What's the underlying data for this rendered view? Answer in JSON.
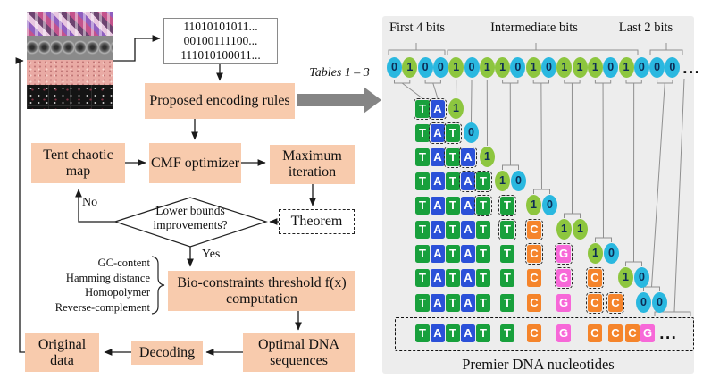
{
  "colors": {
    "peach": "#f8cbad",
    "panel_bg": "#ededed",
    "bit0": "#2ab8e0",
    "bit1": "#8dc63f",
    "digit": "#0d2c55",
    "A": "#2b50d8",
    "T": "#18a03c",
    "C": "#f5842b",
    "G": "#f768d8"
  },
  "left": {
    "binary": [
      "11010101011...",
      "00100111100...",
      "111010100011..."
    ],
    "boxes": {
      "proposed": "Proposed encoding rules",
      "tent": "Tent chaotic map",
      "cmf": "CMF optimizer",
      "max": "Maximum iteration",
      "theorem": "Theorem",
      "bio": "Bio-constraints threshold f(x) computation",
      "optimal": "Optimal DNA sequences",
      "decoding": "Decoding",
      "original": "Original data"
    },
    "diamond": {
      "line1": "Lower bounds",
      "line2": "improvements?"
    },
    "no_label": "No",
    "yes_label": "Yes",
    "constraints": [
      "GC-content",
      "Hamming distance",
      "Homopolymer",
      "Reverse-complement"
    ],
    "tables_label": "Tables 1 – 3"
  },
  "panel": {
    "group_labels": [
      "First 4 bits",
      "Intermediate bits",
      "Last 2 bits"
    ],
    "bitstream": [
      0,
      1,
      0,
      0,
      1,
      0,
      1,
      1,
      0,
      1,
      0,
      1,
      1,
      1,
      0,
      1,
      0,
      0,
      0
    ],
    "ellipsis": "...",
    "rows": [
      {
        "letters": "TA",
        "dashed": [
          0,
          1
        ],
        "bits": [
          1
        ]
      },
      {
        "letters": "TAT",
        "dashed": [
          1,
          2
        ],
        "bits": [
          0
        ]
      },
      {
        "letters": "TATA",
        "dashed": [
          2,
          3
        ],
        "bits": [
          1
        ]
      },
      {
        "letters": "TATAT",
        "dashed": [
          3,
          4
        ],
        "bits": [
          1,
          0
        ]
      },
      {
        "letters": "TATATT",
        "dashed": [
          4,
          5
        ],
        "bits": [
          1,
          0
        ]
      },
      {
        "letters": "TATATTC",
        "dashed": [
          5,
          6
        ],
        "bits": [
          1,
          1
        ]
      },
      {
        "letters": "TATATTCG",
        "dashed": [
          6,
          7
        ],
        "bits": [
          1,
          0
        ]
      },
      {
        "letters": "TATATTCGC",
        "dashed": [
          7,
          8
        ],
        "bits": [
          1,
          0
        ]
      },
      {
        "letters": "TATATTCGCC",
        "dashed": [
          8,
          9
        ],
        "bits": [
          0,
          0
        ]
      },
      {
        "letters": "TATATTCGCCCG",
        "dashed": [],
        "bits": [],
        "ellipsis": true,
        "boxed": true
      }
    ],
    "caption": "Premier DNA nucleotides"
  }
}
